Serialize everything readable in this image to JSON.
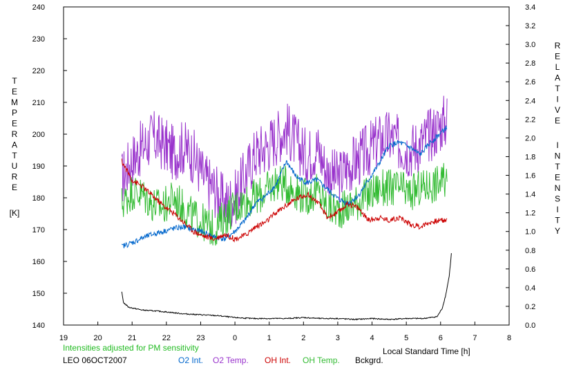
{
  "chart_data": {
    "type": "line",
    "left_axis": {
      "label_letters": [
        "T",
        "E",
        "M",
        "P",
        "E",
        "R",
        "A",
        "T",
        "U",
        "R",
        "E"
      ],
      "unit": "[K]",
      "ticks": [
        140,
        150,
        160,
        170,
        180,
        190,
        200,
        210,
        220,
        230,
        240
      ],
      "range": [
        140,
        240
      ]
    },
    "right_axis": {
      "label_letters_word1": [
        "R",
        "E",
        "L",
        "A",
        "T",
        "I",
        "V",
        "E"
      ],
      "label_letters_word2": [
        "I",
        "N",
        "T",
        "E",
        "N",
        "S",
        "I",
        "T",
        "Y"
      ],
      "ticks": [
        "0.0",
        "0.2",
        "0.4",
        "0.6",
        "0.8",
        "1.0",
        "1.2",
        "1.4",
        "1.6",
        "1.8",
        "2.0",
        "2.2",
        "2.4",
        "2.6",
        "2.8",
        "3.0",
        "3.2",
        "3.4"
      ],
      "range": [
        0,
        3.4
      ]
    },
    "x_axis": {
      "label": "Local Standard Time [h]",
      "ticks": [
        "19",
        "20",
        "21",
        "22",
        "23",
        "0",
        "1",
        "2",
        "3",
        "4",
        "5",
        "6",
        "7",
        "8"
      ],
      "range_hours": [
        19,
        32
      ]
    },
    "note": "Intensities adjusted for PM sensitivity",
    "station": "LEO 06OCT2007",
    "legend": [
      {
        "name": "O2 Int.",
        "color": "#0066cc"
      },
      {
        "name": "O2 Temp.",
        "color": "#9933cc"
      },
      {
        "name": "OH Int.",
        "color": "#cc0000"
      },
      {
        "name": "OH Temp.",
        "color": "#33bb33"
      },
      {
        "name": "Bckgrd.",
        "color": "#000000"
      }
    ],
    "series": [
      {
        "name": "O2 Temp.",
        "axis": "left",
        "color": "#9933cc",
        "x": [
          20.7,
          21.0,
          21.3,
          21.6,
          21.9,
          22.2,
          22.5,
          22.8,
          23.1,
          23.4,
          23.7,
          24.0,
          24.3,
          24.6,
          24.9,
          25.2,
          25.5,
          25.8,
          26.1,
          26.4,
          26.7,
          27.0,
          27.3,
          27.6,
          27.9,
          28.2,
          28.5,
          28.8,
          29.1,
          29.4,
          29.7,
          30.0,
          30.2
        ],
        "y": [
          186,
          192,
          196,
          199,
          197,
          194,
          196,
          193,
          186,
          183,
          178,
          180,
          187,
          194,
          196,
          199,
          202,
          197,
          193,
          196,
          188,
          186,
          190,
          192,
          195,
          198,
          199,
          197,
          195,
          197,
          200,
          203,
          205
        ],
        "amp": 9
      },
      {
        "name": "OH Temp.",
        "axis": "left",
        "color": "#33bb33",
        "x": [
          20.7,
          21.0,
          21.3,
          21.6,
          21.9,
          22.2,
          22.5,
          22.8,
          23.1,
          23.4,
          23.7,
          24.0,
          24.3,
          24.6,
          24.9,
          25.2,
          25.5,
          25.8,
          26.1,
          26.4,
          26.7,
          27.0,
          27.3,
          27.6,
          27.9,
          28.2,
          28.5,
          28.8,
          29.1,
          29.4,
          29.7,
          30.0,
          30.2
        ],
        "y": [
          178,
          182,
          181,
          178,
          177,
          180,
          177,
          174,
          172,
          170,
          174,
          177,
          179,
          180,
          182,
          185,
          184,
          182,
          180,
          182,
          177,
          176,
          177,
          179,
          181,
          183,
          183,
          183,
          181,
          183,
          184,
          185,
          185
        ],
        "amp": 6
      },
      {
        "name": "O2 Int.",
        "axis": "right",
        "color": "#0066cc",
        "x": [
          20.7,
          21.0,
          21.3,
          21.6,
          21.9,
          22.2,
          22.5,
          22.8,
          23.1,
          23.4,
          23.7,
          24.0,
          24.3,
          24.6,
          24.9,
          25.2,
          25.5,
          25.8,
          26.1,
          26.4,
          26.7,
          27.0,
          27.3,
          27.6,
          27.9,
          28.2,
          28.5,
          28.8,
          29.1,
          29.4,
          29.7,
          30.0,
          30.2
        ],
        "y": [
          0.84,
          0.88,
          0.93,
          0.97,
          1.0,
          1.03,
          1.05,
          1.02,
          0.99,
          0.94,
          0.92,
          1.0,
          1.12,
          1.3,
          1.38,
          1.5,
          1.75,
          1.58,
          1.52,
          1.55,
          1.45,
          1.35,
          1.3,
          1.38,
          1.55,
          1.72,
          1.92,
          1.95,
          1.9,
          1.82,
          1.95,
          2.05,
          2.12
        ],
        "amp": 0.03
      },
      {
        "name": "OH Int.",
        "axis": "right",
        "color": "#cc0000",
        "x": [
          20.7,
          21.0,
          21.3,
          21.6,
          21.9,
          22.2,
          22.5,
          22.8,
          23.1,
          23.4,
          23.7,
          24.0,
          24.3,
          24.6,
          24.9,
          25.2,
          25.5,
          25.8,
          26.1,
          26.4,
          26.7,
          27.0,
          27.3,
          27.6,
          27.9,
          28.2,
          28.5,
          28.8,
          29.1,
          29.4,
          29.7,
          30.0,
          30.2
        ],
        "y": [
          1.75,
          1.55,
          1.48,
          1.38,
          1.28,
          1.2,
          1.1,
          1.0,
          0.95,
          0.92,
          0.97,
          0.92,
          0.96,
          1.05,
          1.1,
          1.2,
          1.28,
          1.35,
          1.4,
          1.32,
          1.15,
          1.2,
          1.3,
          1.25,
          1.12,
          1.15,
          1.12,
          1.15,
          1.08,
          1.05,
          1.1,
          1.12,
          1.12
        ],
        "amp": 0.03
      },
      {
        "name": "Bckgrd.",
        "axis": "right",
        "color": "#000000",
        "x": [
          20.7,
          20.75,
          20.9,
          21.3,
          21.7,
          22.0,
          22.5,
          23.0,
          23.5,
          24.0,
          24.5,
          25.0,
          25.5,
          26.0,
          26.5,
          27.0,
          27.5,
          28.0,
          28.5,
          29.0,
          29.5,
          29.9,
          30.05,
          30.15,
          30.25,
          30.32
        ],
        "y": [
          0.35,
          0.24,
          0.19,
          0.16,
          0.15,
          0.14,
          0.12,
          0.11,
          0.1,
          0.08,
          0.07,
          0.07,
          0.07,
          0.08,
          0.07,
          0.07,
          0.06,
          0.07,
          0.06,
          0.07,
          0.07,
          0.09,
          0.18,
          0.32,
          0.52,
          0.78
        ],
        "amp": 0.006
      }
    ]
  }
}
